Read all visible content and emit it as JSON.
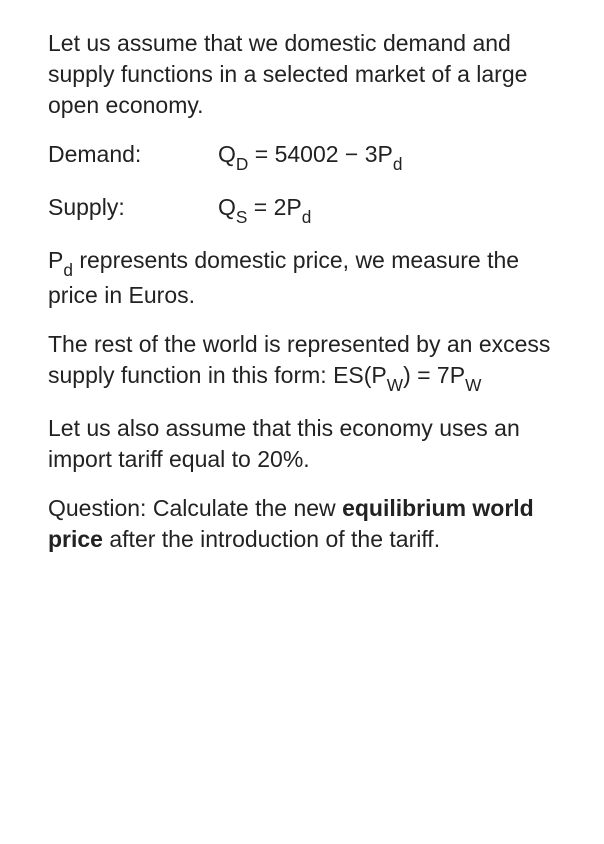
{
  "intro": {
    "text_a": "Let us assume that we domestic demand and supply functions in a selected market of a large open economy."
  },
  "demand": {
    "label": "Demand:",
    "lhs_var": "Q",
    "lhs_sub": "D",
    "eq_sign": " = ",
    "rhs_const": "54002 − 3P",
    "rhs_sub": "d"
  },
  "supply": {
    "label": "Supply:",
    "lhs_var": "Q",
    "lhs_sub": "S",
    "eq_sign": "  = ",
    "rhs_const": "2P",
    "rhs_sub": "d"
  },
  "pd_explain": {
    "pre": "P",
    "sub": "d",
    "post": " represents domestic price, we measure the price in Euros."
  },
  "row_explain": {
    "pre": "The rest of the world is represented by an excess supply function in this form:  ES(P",
    "sub1": "W",
    "mid": ") = 7P",
    "sub2": "W"
  },
  "tariff": {
    "text": "Let us also assume that this economy uses an import tariff equal to 20%."
  },
  "question": {
    "pre": "Question: Calculate the new ",
    "bold": "equilibrium world price",
    "post": " after the introduction of the tariff."
  }
}
